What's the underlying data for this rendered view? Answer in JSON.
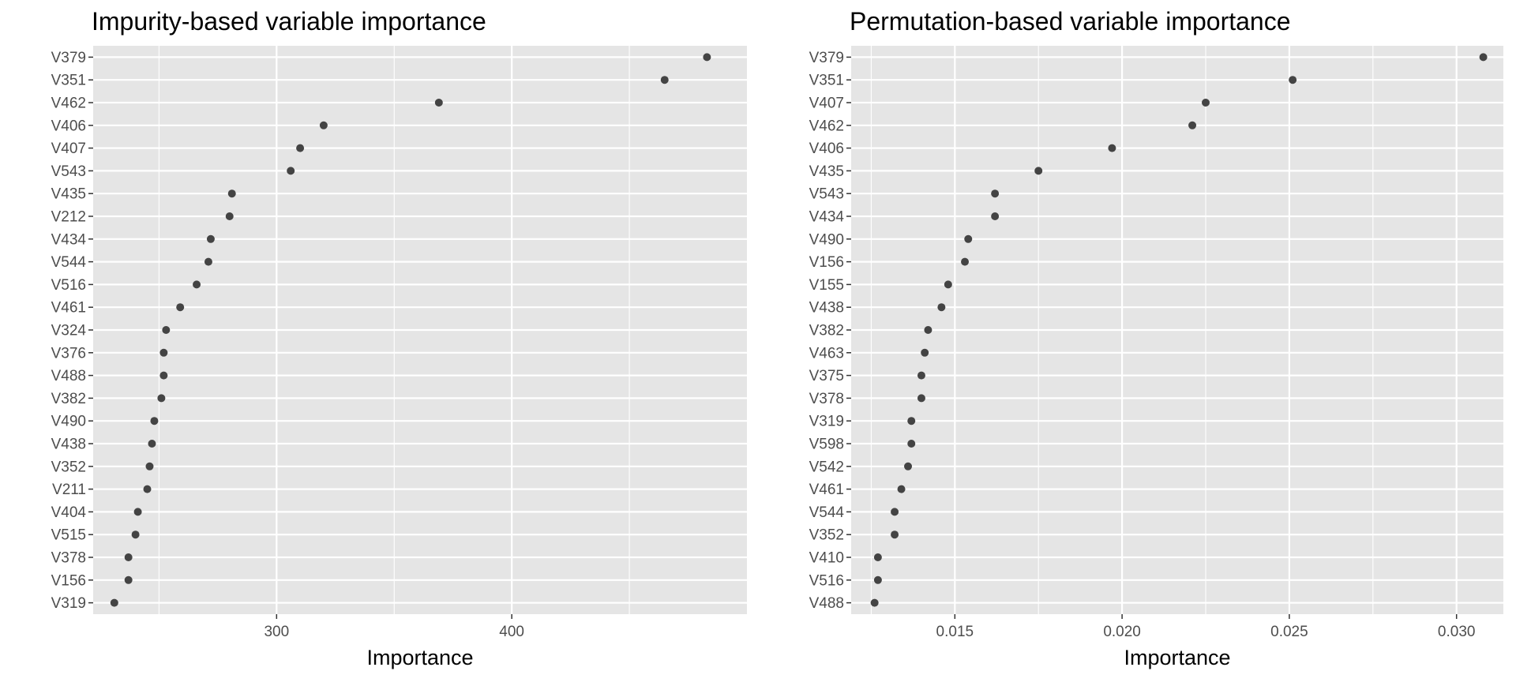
{
  "chart_data": [
    {
      "type": "scatter",
      "title": "Impurity-based variable importance",
      "xlabel": "Importance",
      "ylabel": "",
      "xlim": [
        222,
        500
      ],
      "xticks": [
        300,
        400
      ],
      "xtick_labels": [
        "300",
        "400"
      ],
      "grid": true,
      "categories": [
        "V379",
        "V351",
        "V462",
        "V406",
        "V407",
        "V543",
        "V435",
        "V212",
        "V434",
        "V544",
        "V516",
        "V461",
        "V324",
        "V376",
        "V488",
        "V382",
        "V490",
        "V438",
        "V352",
        "V211",
        "V404",
        "V515",
        "V378",
        "V156",
        "V319"
      ],
      "values": [
        483,
        465,
        369,
        320,
        310,
        306,
        281,
        280,
        272,
        271,
        266,
        259,
        253,
        252,
        252,
        251,
        248,
        247,
        246,
        245,
        241,
        240,
        237,
        237,
        231
      ]
    },
    {
      "type": "scatter",
      "title": "Permutation-based variable importance",
      "xlabel": "Importance",
      "ylabel": "",
      "xlim": [
        0.0119,
        0.0314
      ],
      "xticks": [
        0.015,
        0.02,
        0.025,
        0.03
      ],
      "xtick_labels": [
        "0.015",
        "0.020",
        "0.025",
        "0.030"
      ],
      "grid": true,
      "categories": [
        "V379",
        "V351",
        "V407",
        "V462",
        "V406",
        "V435",
        "V543",
        "V434",
        "V490",
        "V156",
        "V155",
        "V438",
        "V382",
        "V463",
        "V375",
        "V378",
        "V319",
        "V598",
        "V542",
        "V461",
        "V544",
        "V352",
        "V410",
        "V516",
        "V488"
      ],
      "values": [
        0.0308,
        0.0251,
        0.0225,
        0.0221,
        0.0197,
        0.0175,
        0.0162,
        0.0162,
        0.0154,
        0.0153,
        0.0148,
        0.0146,
        0.0142,
        0.0141,
        0.014,
        0.014,
        0.0137,
        0.0137,
        0.0136,
        0.0134,
        0.0132,
        0.0132,
        0.0127,
        0.0127,
        0.0126
      ]
    }
  ],
  "colors": {
    "panel_background": "#e5e5e5",
    "grid_line": "#ffffff",
    "point": "#444444",
    "tick_text": "#4d4d4d"
  }
}
